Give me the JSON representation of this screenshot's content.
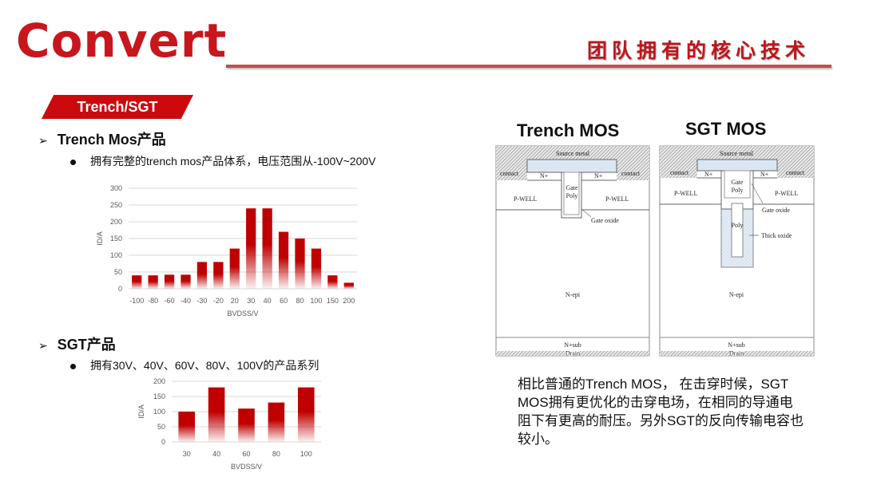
{
  "header": {
    "logo": "Convert",
    "title": "团队拥有的核心技术",
    "brand_color": "#c8161d"
  },
  "section_tag": "Trench/SGT",
  "trench": {
    "heading": "Trench Mos产品",
    "bullet": "拥有完整的trench mos产品体系，电压范围从-100V~200V"
  },
  "sgt": {
    "heading": "SGT产品",
    "bullet": "拥有30V、40V、60V、80V、100V的产品系列"
  },
  "chart_data": [
    {
      "type": "bar",
      "categories": [
        "-100",
        "-80",
        "-60",
        "-40",
        "-30",
        "-20",
        "20",
        "30",
        "40",
        "60",
        "80",
        "100",
        "150",
        "200"
      ],
      "values": [
        40,
        40,
        42,
        42,
        80,
        80,
        120,
        240,
        240,
        170,
        150,
        120,
        40,
        18
      ],
      "xlabel": "BVDSS/V",
      "ylabel": "ID/A",
      "ylim": [
        0,
        300
      ],
      "yticks": [
        0,
        50,
        100,
        150,
        200,
        250,
        300
      ],
      "grid": true,
      "bar_color": "#c00000"
    },
    {
      "type": "bar",
      "categories": [
        "30",
        "40",
        "60",
        "80",
        "100"
      ],
      "values": [
        100,
        180,
        110,
        130,
        180
      ],
      "xlabel": "BVDSS/V",
      "ylabel": "ID/A",
      "ylim": [
        0,
        200
      ],
      "yticks": [
        0,
        50,
        100,
        150,
        200
      ],
      "grid": true,
      "bar_color": "#c00000"
    }
  ],
  "diagrams": {
    "trench": {
      "title": "Trench  MOS",
      "source_metal": "Source metal",
      "contact": "contact",
      "nplus": "N+",
      "gate_poly_1": "Gate",
      "gate_poly_2": "Poly",
      "pwell": "P-WELL",
      "gate_oxide": "Gate oxide",
      "nepi": "N-epi",
      "nsub": "N+sub",
      "drain": "Drain"
    },
    "sgt": {
      "title": "SGT MOS",
      "source_metal": "Source metal",
      "contact": "contact",
      "nplus": "N+",
      "gate_poly_1": "Gate",
      "gate_poly_2": "Poly",
      "pwell": "P-WELL",
      "gate_oxide": "Gate oxide",
      "poly": "Poly",
      "thick_oxide": "Thick oxide",
      "nepi": "N-epi",
      "nsub": "N+sub",
      "drain": "Drain"
    }
  },
  "description": "相比普通的Trench MOS， 在击穿时候，SGT MOS拥有更优化的击穿电场，在相同的导通电阻下有更高的耐压。另外SGT的反向传输电容也较小。"
}
